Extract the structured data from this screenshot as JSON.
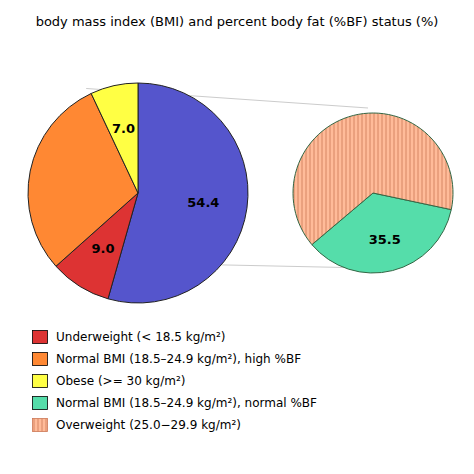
{
  "chart_data": [
    {
      "type": "pie",
      "title": "body mass index (BMI) and percent body fat (%BF) status (%)",
      "categories": [
        null,
        "Underweight (< 18.5 kg/m²)",
        "Normal BMI (18.5–24.9 kg/m²), high %BF",
        "Obese (>= 30 kg/m²)"
      ],
      "values": [
        54.4,
        9.0,
        29.6,
        7.0
      ],
      "colors": [
        "#5555cc",
        "#dd3333",
        "#ff8833",
        "#ffff44"
      ],
      "data_labels": true,
      "value_labels": [
        "54.4",
        "9.0",
        null,
        "7.0"
      ]
    },
    {
      "type": "pie",
      "categories": [
        "Normal BMI (18.5–24.9 kg/m²), normal %BF",
        "Overweight (25.0−29.9 kg/m²)"
      ],
      "values": [
        35.5,
        64.5
      ],
      "colors": [
        "#55ddaa",
        "#ffbb99"
      ],
      "data_labels": true,
      "value_labels": [
        "35.5",
        null
      ]
    }
  ]
}
